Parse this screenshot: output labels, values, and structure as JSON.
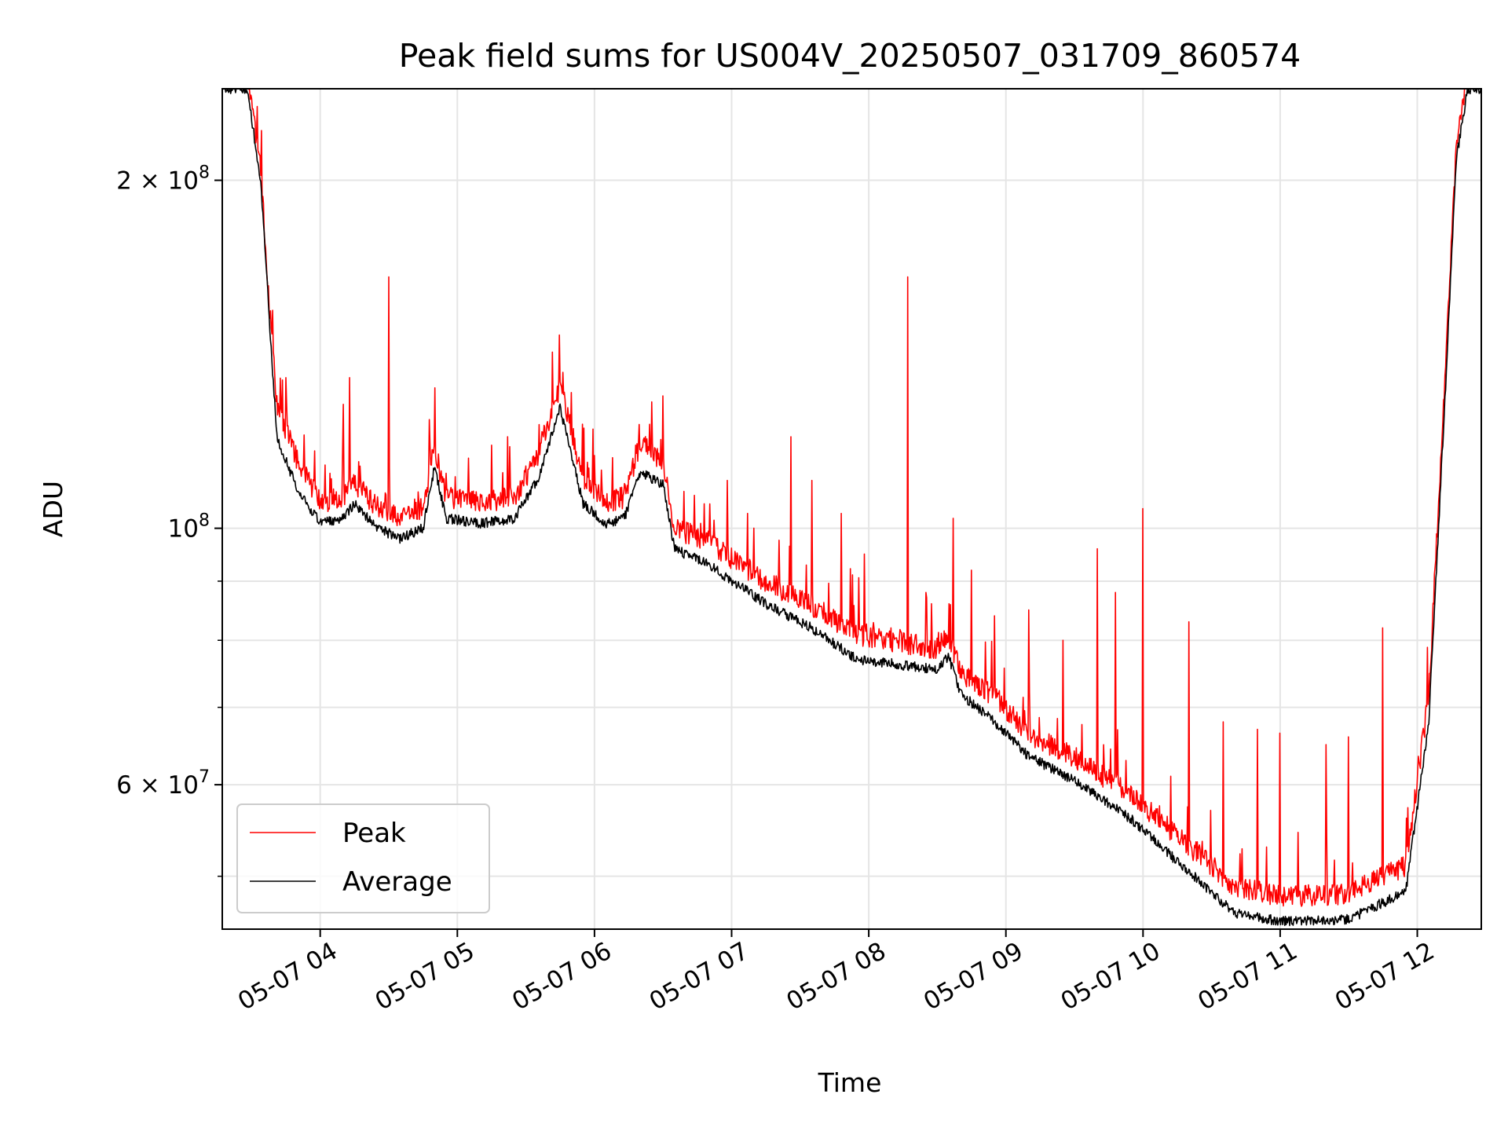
{
  "chart_data": {
    "type": "line",
    "title": "Peak field sums for US004V_20250507_031709_860574",
    "xlabel": "Time",
    "ylabel": "ADU",
    "x_axis": "time",
    "x_range": [
      "2025-05-07 03:17:09",
      "2025-05-07 12:28:00"
    ],
    "x_ticks": [
      {
        "value": "2025-05-07 04:00",
        "label": "05-07 04"
      },
      {
        "value": "2025-05-07 05:00",
        "label": "05-07 05"
      },
      {
        "value": "2025-05-07 06:00",
        "label": "05-07 06"
      },
      {
        "value": "2025-05-07 07:00",
        "label": "05-07 07"
      },
      {
        "value": "2025-05-07 08:00",
        "label": "05-07 08"
      },
      {
        "value": "2025-05-07 09:00",
        "label": "05-07 09"
      },
      {
        "value": "2025-05-07 10:00",
        "label": "05-07 10"
      },
      {
        "value": "2025-05-07 11:00",
        "label": "05-07 11"
      },
      {
        "value": "2025-05-07 12:00",
        "label": "05-07 12"
      }
    ],
    "y_scale": "log",
    "ylim": [
      45000000,
      240000000
    ],
    "y_major_ticks": [
      {
        "value": 200000000,
        "base": "2 × 10",
        "exp": "8"
      },
      {
        "value": 100000000,
        "base": "10",
        "exp": "8"
      },
      {
        "value": 60000000,
        "base": "6 × 10",
        "exp": "7"
      }
    ],
    "y_minor_grid": [
      50000000,
      70000000,
      80000000,
      90000000
    ],
    "grid": true,
    "legend": "lower-left",
    "series": [
      {
        "name": "Peak",
        "color": "#ff0000",
        "baseline_points": [
          [
            "2025-05-07 03:17",
            240000000
          ],
          [
            "2025-05-07 03:28",
            240000000
          ],
          [
            "2025-05-07 03:34",
            200000000
          ],
          [
            "2025-05-07 03:37",
            160000000
          ],
          [
            "2025-05-07 03:41",
            125000000
          ],
          [
            "2025-05-07 03:50",
            112000000
          ],
          [
            "2025-05-07 04:00",
            103000000
          ],
          [
            "2025-05-07 04:10",
            104000000
          ],
          [
            "2025-05-07 04:15",
            107000000
          ],
          [
            "2025-05-07 04:25",
            102000000
          ],
          [
            "2025-05-07 04:35",
            100000000
          ],
          [
            "2025-05-07 04:45",
            102000000
          ],
          [
            "2025-05-07 04:50",
            115000000
          ],
          [
            "2025-05-07 04:55",
            104000000
          ],
          [
            "2025-05-07 05:10",
            103000000
          ],
          [
            "2025-05-07 05:25",
            104000000
          ],
          [
            "2025-05-07 05:35",
            113000000
          ],
          [
            "2025-05-07 05:45",
            130000000
          ],
          [
            "2025-05-07 05:55",
            108000000
          ],
          [
            "2025-05-07 06:05",
            103000000
          ],
          [
            "2025-05-07 06:13",
            104000000
          ],
          [
            "2025-05-07 06:20",
            116000000
          ],
          [
            "2025-05-07 06:30",
            112000000
          ],
          [
            "2025-05-07 06:35",
            98000000
          ],
          [
            "2025-05-07 06:50",
            95000000
          ],
          [
            "2025-05-07 07:15",
            88000000
          ],
          [
            "2025-05-07 07:35",
            84000000
          ],
          [
            "2025-05-07 07:55",
            79000000
          ],
          [
            "2025-05-07 08:30",
            77000000
          ],
          [
            "2025-05-07 08:35",
            79000000
          ],
          [
            "2025-05-07 08:40",
            73500000
          ],
          [
            "2025-05-07 08:55",
            70000000
          ],
          [
            "2025-05-07 09:10",
            65000000
          ],
          [
            "2025-05-07 09:30",
            62000000
          ],
          [
            "2025-05-07 09:55",
            57500000
          ],
          [
            "2025-05-07 10:15",
            53000000
          ],
          [
            "2025-05-07 10:40",
            48000000
          ],
          [
            "2025-05-07 11:00",
            47000000
          ],
          [
            "2025-05-07 11:30",
            47200000
          ],
          [
            "2025-05-07 11:55",
            50000000
          ],
          [
            "2025-05-07 12:05",
            70000000
          ],
          [
            "2025-05-07 12:12",
            130000000
          ],
          [
            "2025-05-07 12:17",
            210000000
          ],
          [
            "2025-05-07 12:22",
            240000000
          ],
          [
            "2025-05-07 12:28",
            240000000
          ]
        ],
        "spikes": [
          [
            "2025-05-07 03:45",
            135000000
          ],
          [
            "2025-05-07 04:10",
            128000000
          ],
          [
            "2025-05-07 04:13",
            135000000
          ],
          [
            "2025-05-07 04:30",
            165000000
          ],
          [
            "2025-05-07 04:48",
            118000000
          ],
          [
            "2025-05-07 05:05",
            115000000
          ],
          [
            "2025-05-07 05:15",
            118000000
          ],
          [
            "2025-05-07 05:22",
            120000000
          ],
          [
            "2025-05-07 06:18",
            118000000
          ],
          [
            "2025-05-07 06:48",
            105000000
          ],
          [
            "2025-05-07 06:58",
            110000000
          ],
          [
            "2025-05-07 07:07",
            103000000
          ],
          [
            "2025-05-07 07:26",
            120000000
          ],
          [
            "2025-05-07 07:35",
            110000000
          ],
          [
            "2025-05-07 07:48",
            103000000
          ],
          [
            "2025-05-07 07:58",
            95000000
          ],
          [
            "2025-05-07 08:17",
            165000000
          ],
          [
            "2025-05-07 08:25",
            88000000
          ],
          [
            "2025-05-07 08:37",
            102000000
          ],
          [
            "2025-05-07 08:45",
            92000000
          ],
          [
            "2025-05-07 08:55",
            84000000
          ],
          [
            "2025-05-07 09:10",
            85000000
          ],
          [
            "2025-05-07 09:25",
            80000000
          ],
          [
            "2025-05-07 09:40",
            96000000
          ],
          [
            "2025-05-07 09:48",
            88000000
          ],
          [
            "2025-05-07 10:00",
            104000000
          ],
          [
            "2025-05-07 10:20",
            83000000
          ],
          [
            "2025-05-07 10:35",
            68000000
          ],
          [
            "2025-05-07 10:50",
            67000000
          ],
          [
            "2025-05-07 11:00",
            66500000
          ],
          [
            "2025-05-07 11:20",
            65000000
          ],
          [
            "2025-05-07 11:30",
            66000000
          ],
          [
            "2025-05-07 11:45",
            82000000
          ]
        ]
      },
      {
        "name": "Average",
        "color": "#000000",
        "baseline_points": [
          [
            "2025-05-07 03:17",
            240000000
          ],
          [
            "2025-05-07 03:28",
            240000000
          ],
          [
            "2025-05-07 03:34",
            200000000
          ],
          [
            "2025-05-07 03:37",
            160000000
          ],
          [
            "2025-05-07 03:41",
            120000000
          ],
          [
            "2025-05-07 03:50",
            108000000
          ],
          [
            "2025-05-07 04:00",
            101000000
          ],
          [
            "2025-05-07 04:10",
            102000000
          ],
          [
            "2025-05-07 04:15",
            105000000
          ],
          [
            "2025-05-07 04:25",
            100000000
          ],
          [
            "2025-05-07 04:35",
            98000000
          ],
          [
            "2025-05-07 04:45",
            100000000
          ],
          [
            "2025-05-07 04:50",
            113000000
          ],
          [
            "2025-05-07 04:55",
            102000000
          ],
          [
            "2025-05-07 05:10",
            101000000
          ],
          [
            "2025-05-07 05:25",
            102000000
          ],
          [
            "2025-05-07 05:35",
            110000000
          ],
          [
            "2025-05-07 05:45",
            127000000
          ],
          [
            "2025-05-07 05:55",
            105000000
          ],
          [
            "2025-05-07 06:05",
            101000000
          ],
          [
            "2025-05-07 06:13",
            102000000
          ],
          [
            "2025-05-07 06:20",
            112000000
          ],
          [
            "2025-05-07 06:30",
            109000000
          ],
          [
            "2025-05-07 06:35",
            96000000
          ],
          [
            "2025-05-07 06:50",
            93000000
          ],
          [
            "2025-05-07 07:15",
            86000000
          ],
          [
            "2025-05-07 07:35",
            82000000
          ],
          [
            "2025-05-07 07:55",
            77000000
          ],
          [
            "2025-05-07 08:30",
            75500000
          ],
          [
            "2025-05-07 08:35",
            77500000
          ],
          [
            "2025-05-07 08:40",
            72000000
          ],
          [
            "2025-05-07 08:55",
            68000000
          ],
          [
            "2025-05-07 09:10",
            63500000
          ],
          [
            "2025-05-07 09:30",
            60500000
          ],
          [
            "2025-05-07 09:55",
            56000000
          ],
          [
            "2025-05-07 10:15",
            51500000
          ],
          [
            "2025-05-07 10:40",
            46500000
          ],
          [
            "2025-05-07 11:00",
            45700000
          ],
          [
            "2025-05-07 11:30",
            45900000
          ],
          [
            "2025-05-07 11:55",
            48500000
          ],
          [
            "2025-05-07 12:05",
            68000000
          ],
          [
            "2025-05-07 12:12",
            128000000
          ],
          [
            "2025-05-07 12:17",
            208000000
          ],
          [
            "2025-05-07 12:22",
            240000000
          ],
          [
            "2025-05-07 12:28",
            240000000
          ]
        ]
      }
    ]
  }
}
